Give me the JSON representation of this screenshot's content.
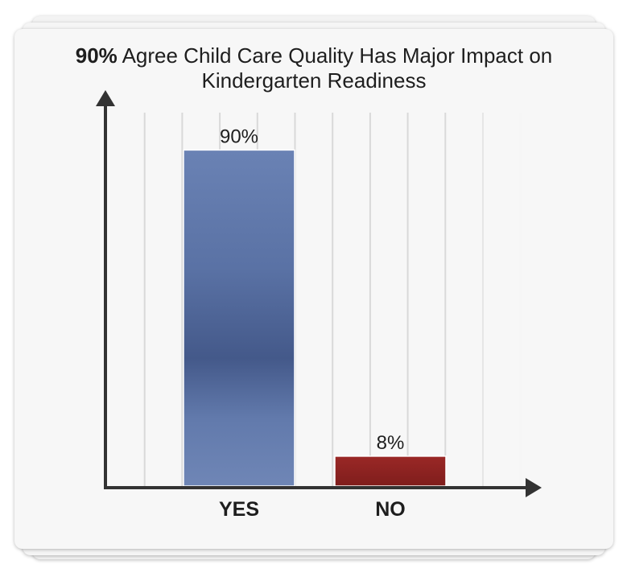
{
  "chart_data": {
    "type": "bar",
    "title_bold": "90%",
    "title_rest": "Agree Child Care Quality Has Major Impact on Kindergarten Readiness",
    "categories": [
      "YES",
      "NO"
    ],
    "values": [
      90,
      8
    ],
    "value_labels": [
      "90%",
      "8%"
    ],
    "colors": [
      "#5b74a6",
      "#8f2322"
    ],
    "ylim": [
      0,
      100
    ],
    "grid": true,
    "xlabel": "",
    "ylabel": ""
  }
}
